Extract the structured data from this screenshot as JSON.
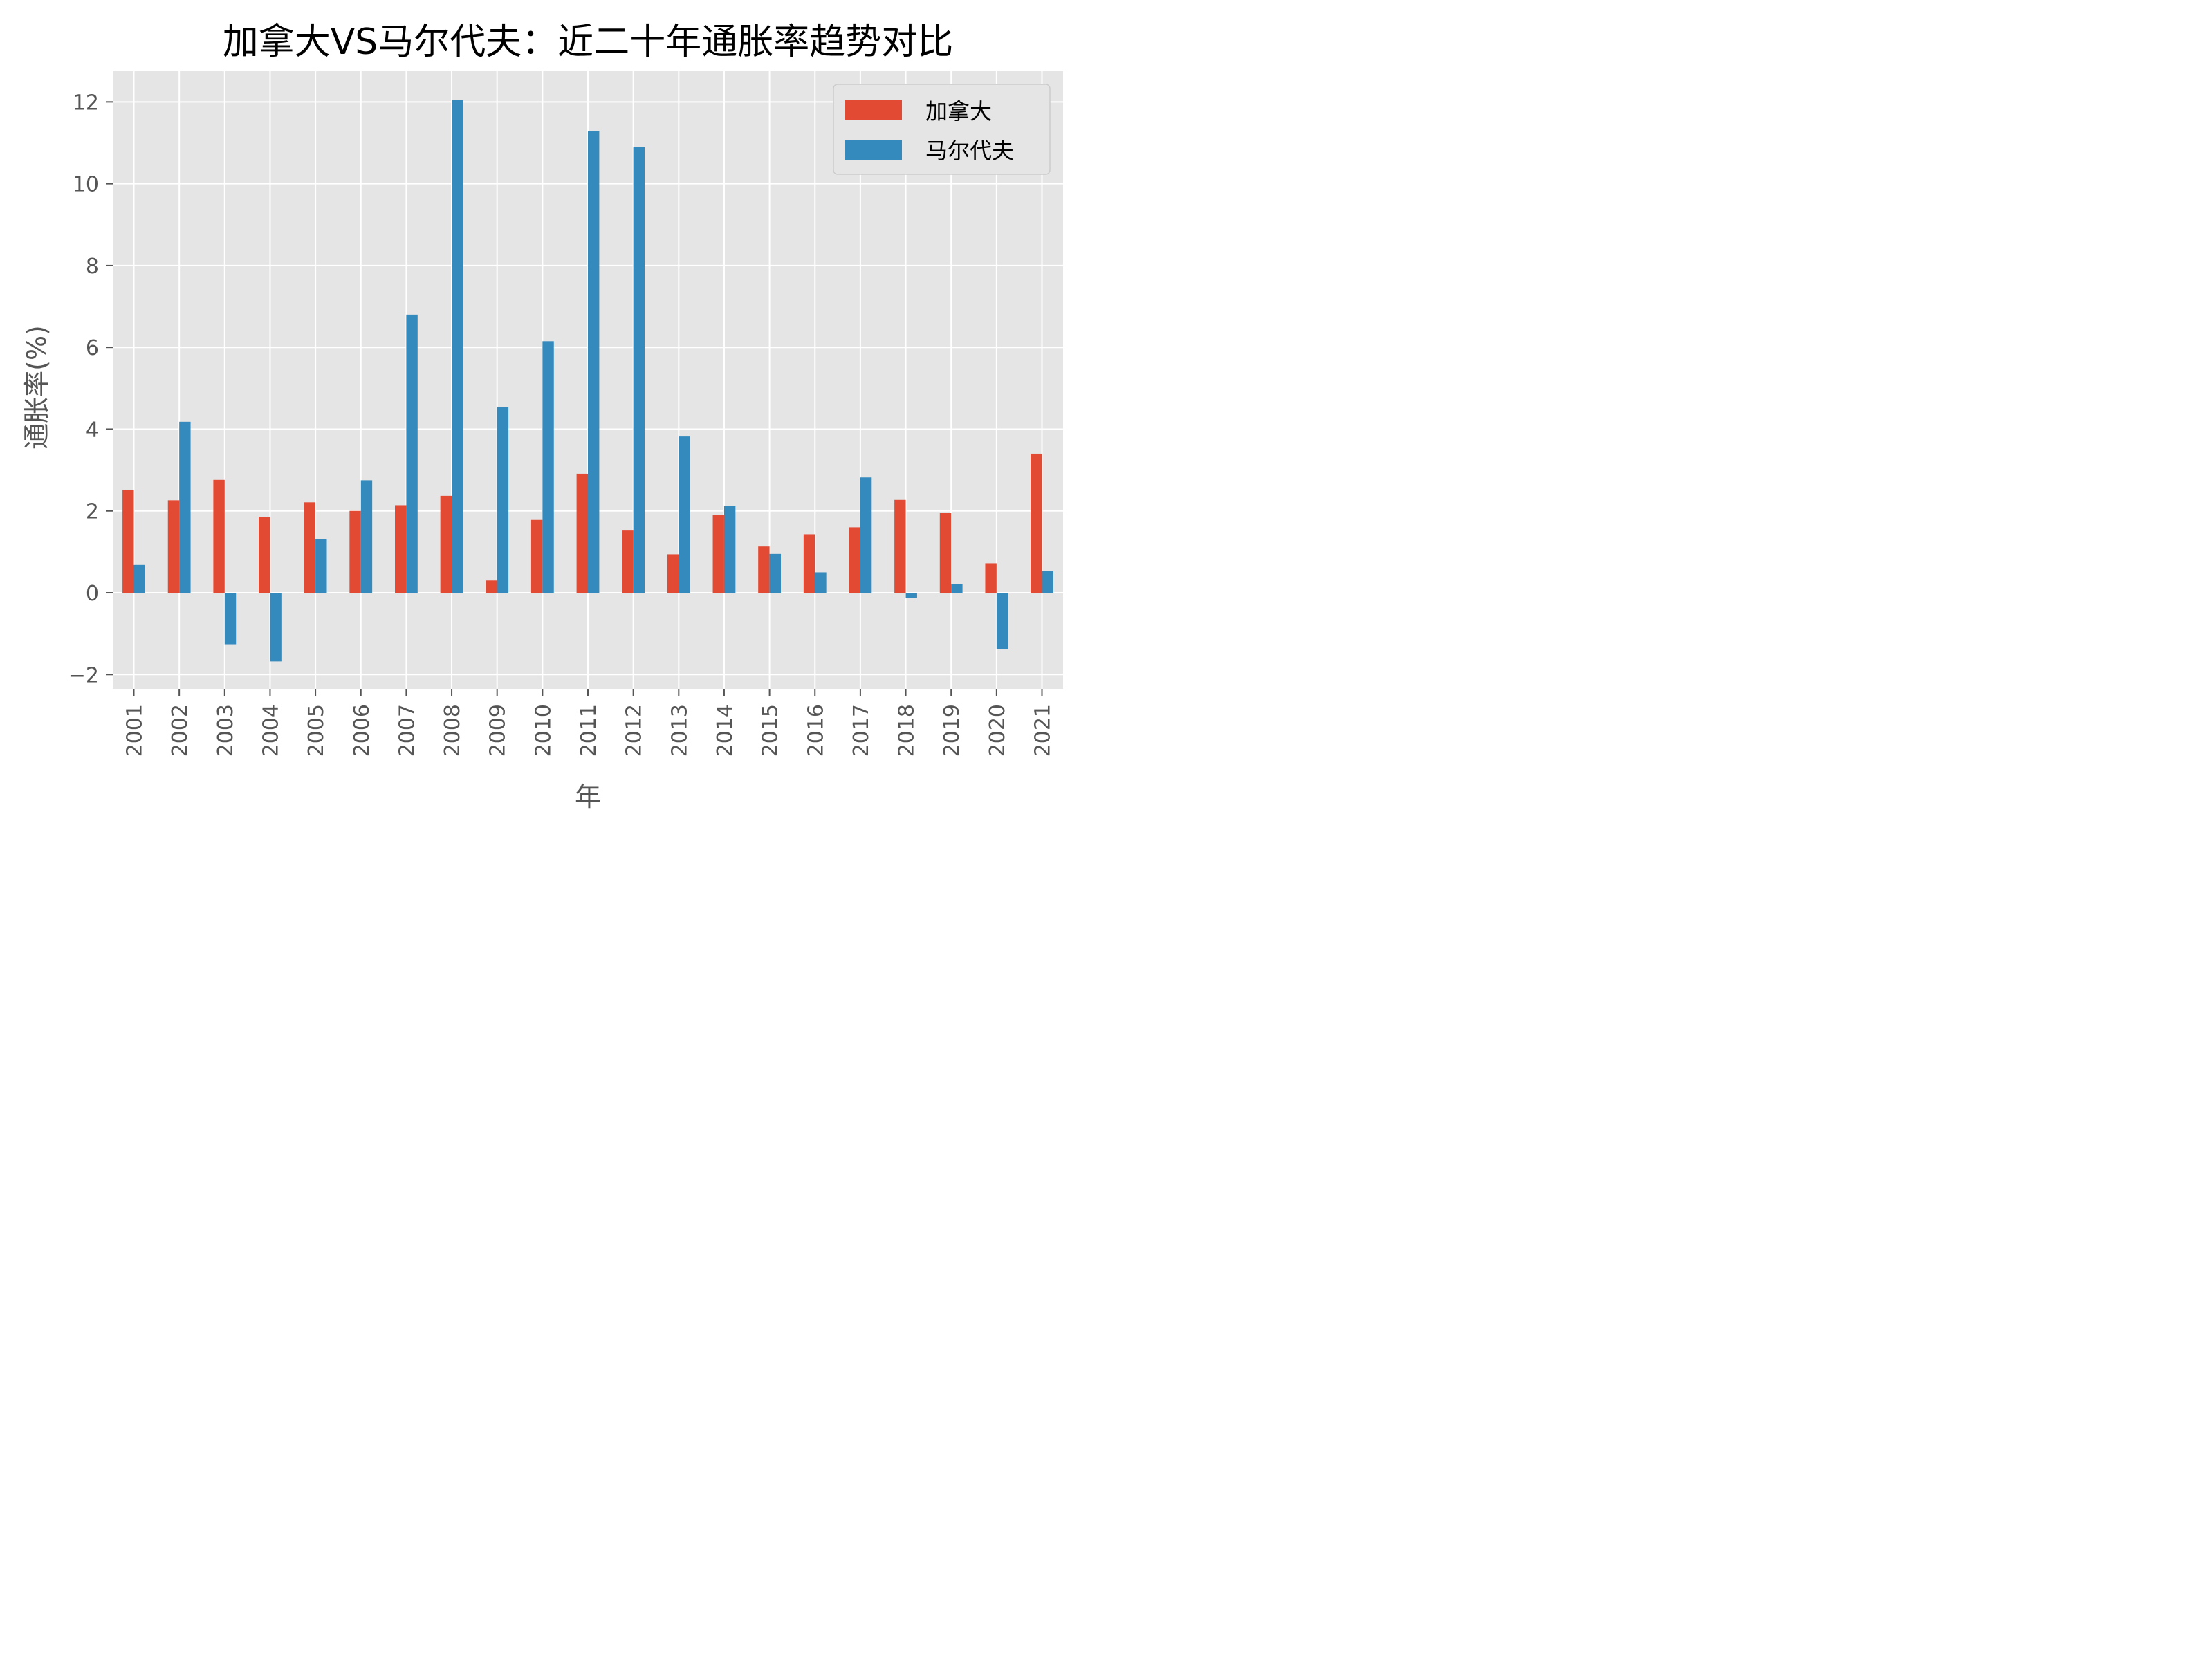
{
  "chart_data": {
    "type": "bar",
    "title": "加拿大VS马尔代夫：近二十年通胀率趋势对比",
    "xlabel": "年",
    "ylabel": "通胀率(%)",
    "categories": [
      "2001",
      "2002",
      "2003",
      "2004",
      "2005",
      "2006",
      "2007",
      "2008",
      "2009",
      "2010",
      "2011",
      "2012",
      "2013",
      "2014",
      "2015",
      "2016",
      "2017",
      "2018",
      "2019",
      "2020",
      "2021"
    ],
    "series": [
      {
        "name": "加拿大",
        "color": "#e24a33",
        "values": [
          2.52,
          2.26,
          2.76,
          1.86,
          2.21,
          2.0,
          2.14,
          2.37,
          0.3,
          1.78,
          2.91,
          1.52,
          0.94,
          1.91,
          1.13,
          1.43,
          1.6,
          2.27,
          1.95,
          0.72,
          3.4
        ]
      },
      {
        "name": "马尔代夫",
        "color": "#348abd",
        "values": [
          0.68,
          4.18,
          -1.26,
          -1.68,
          1.31,
          2.75,
          6.8,
          12.05,
          4.54,
          6.15,
          11.28,
          10.89,
          3.82,
          2.12,
          0.95,
          0.5,
          2.82,
          -0.13,
          0.22,
          -1.37,
          0.54
        ]
      }
    ],
    "yticks": [
      -2,
      0,
      2,
      4,
      6,
      8,
      10,
      12
    ],
    "ylim": [
      -2.35,
      12.75
    ],
    "grid": true,
    "legend_position": "top-right",
    "background": "#e5e5e5"
  }
}
